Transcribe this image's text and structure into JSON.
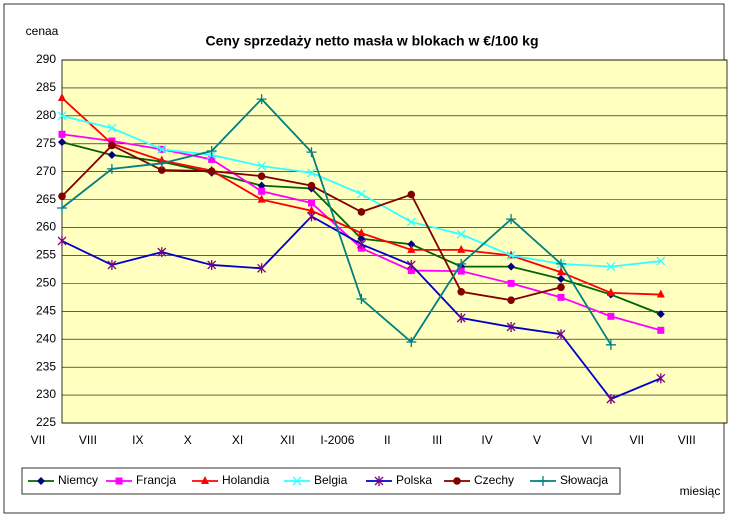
{
  "chart_data": {
    "type": "line",
    "title": "Ceny sprzedaży netto masła w blokach w €/100 kg",
    "y_label": "cenaa",
    "x_label": "miesiąc",
    "categories": [
      "VII",
      "VIII",
      "IX",
      "X",
      "XI",
      "XII",
      "I-2006",
      "II",
      "III",
      "IV",
      "V",
      "VI",
      "VII",
      "VIII"
    ],
    "ylim": [
      225,
      290
    ],
    "yticks": [
      225,
      230,
      235,
      240,
      245,
      250,
      255,
      260,
      265,
      270,
      275,
      280,
      285,
      290
    ],
    "grid": true,
    "legend": "bottom",
    "series": [
      {
        "name": "Niemcy",
        "color": "#006400",
        "marker": "diamond",
        "values": [
          275.3,
          273,
          271.8,
          269.8,
          267.5,
          267,
          258,
          257,
          253,
          253,
          250.8,
          248,
          244.5,
          null
        ]
      },
      {
        "name": "Francja",
        "color": "#ff00ff",
        "marker": "square",
        "values": [
          276.7,
          275.5,
          274,
          272.2,
          266.5,
          264.4,
          256.3,
          252.3,
          252.2,
          250,
          247.5,
          244.1,
          241.6,
          null
        ]
      },
      {
        "name": "Holandia",
        "color": "#ff0000",
        "marker": "triangle",
        "values": [
          283.2,
          275,
          272,
          270.2,
          265,
          263,
          259,
          256,
          256,
          255,
          252,
          248.3,
          248,
          null
        ]
      },
      {
        "name": "Belgia",
        "color": "#33ffff",
        "marker": "x",
        "values": [
          280,
          277.8,
          274,
          273,
          271,
          269.8,
          266,
          261,
          258.8,
          255,
          253.5,
          253,
          254,
          null
        ]
      },
      {
        "name": "Polska",
        "color": "#0000cc",
        "marker": "star",
        "values": [
          257.6,
          253.3,
          255.6,
          253.3,
          252.7,
          262,
          257,
          253.3,
          243.8,
          242.2,
          240.9,
          229.3,
          233,
          null
        ]
      },
      {
        "name": "Czechy",
        "color": "#800000",
        "marker": "circle",
        "values": [
          265.6,
          274.7,
          270.3,
          270.1,
          269.2,
          267.5,
          262.8,
          265.9,
          248.5,
          247,
          249.3,
          null,
          null,
          null
        ]
      },
      {
        "name": "Słowacja",
        "color": "#008080",
        "marker": "plus",
        "values": [
          263.5,
          270.5,
          271.5,
          273.7,
          283,
          273.5,
          247.2,
          239.5,
          253.5,
          261.5,
          253.5,
          239,
          null,
          null
        ]
      }
    ]
  }
}
